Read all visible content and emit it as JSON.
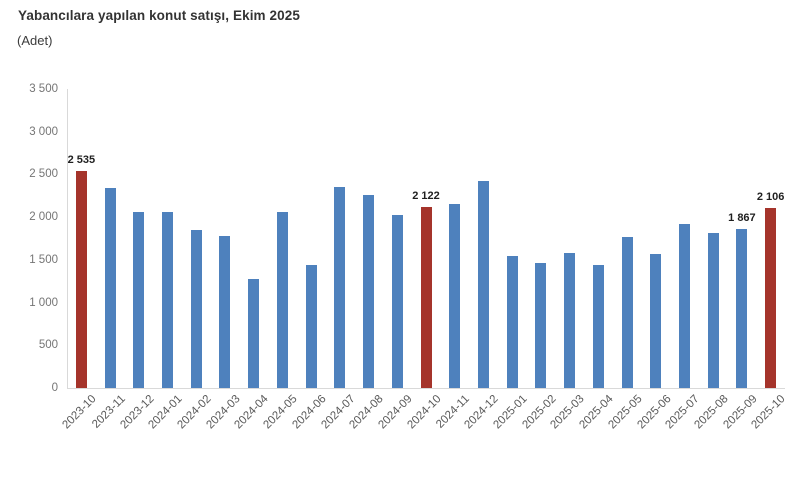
{
  "header": {
    "title": "Yabancılara yapılan konut satışı, Ekim 2025",
    "subtitle": "(Adet)"
  },
  "chart_data": {
    "type": "bar",
    "title": "Yabancılara yapılan konut satışı, Ekim 2025",
    "unit_label": "(Adet)",
    "categories": [
      "2023-10",
      "2023-11",
      "2023-12",
      "2024-01",
      "2024-02",
      "2024-03",
      "2024-04",
      "2024-05",
      "2024-06",
      "2024-07",
      "2024-08",
      "2024-09",
      "2024-10",
      "2024-11",
      "2024-12",
      "2025-01",
      "2025-02",
      "2025-03",
      "2025-04",
      "2025-05",
      "2025-06",
      "2025-07",
      "2025-08",
      "2025-09",
      "2025-10"
    ],
    "values": [
      2535,
      2340,
      2065,
      2065,
      1850,
      1780,
      1280,
      2065,
      1445,
      2350,
      2265,
      2025,
      2122,
      2155,
      2420,
      1550,
      1460,
      1575,
      1445,
      1770,
      1570,
      1920,
      1820,
      1867,
      2106
    ],
    "highlighted_indices": [
      0,
      12,
      24
    ],
    "data_labels": {
      "0": "2 535",
      "12": "2 122",
      "23": "1 867",
      "24": "2 106"
    },
    "ylim": [
      0,
      3500
    ],
    "y_tick_step": 500,
    "y_ticks": [
      {
        "value": 0,
        "label": "0"
      },
      {
        "value": 500,
        "label": "500"
      },
      {
        "value": 1000,
        "label": "1 000"
      },
      {
        "value": 1500,
        "label": "1 500"
      },
      {
        "value": 2000,
        "label": "2 000"
      },
      {
        "value": 2500,
        "label": "2 500"
      },
      {
        "value": 3000,
        "label": "3 000"
      },
      {
        "value": 3500,
        "label": "3 500"
      }
    ],
    "grid": false,
    "legend": "none",
    "colors": {
      "bar": "#4e81bd",
      "highlight": "#a5342b",
      "axis_line": "#d9d9d9",
      "y_tick_text": "#757575",
      "x_tick_text": "#595959",
      "data_label_text": "#1f1f1f",
      "title_text": "#333333",
      "background": "#ffffff"
    }
  }
}
